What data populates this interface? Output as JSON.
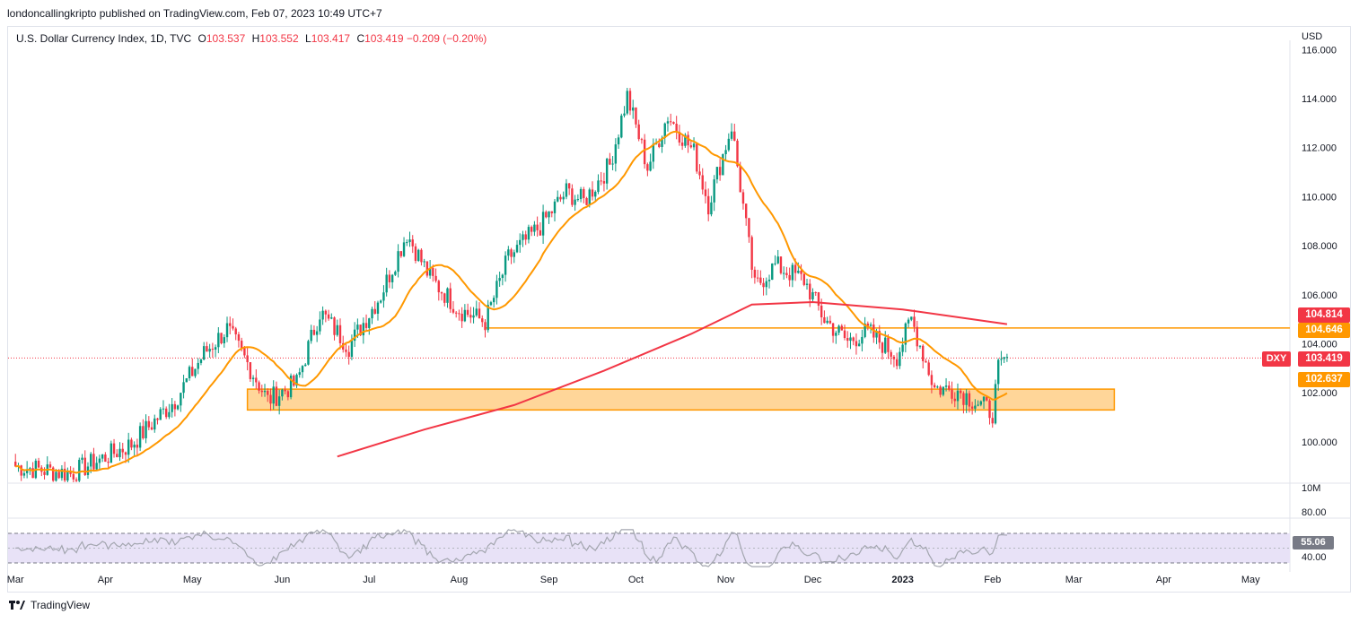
{
  "header": {
    "published_line": "londoncallingkripto published on TradingView.com, Feb 07, 2023 10:49 UTC+7"
  },
  "legend": {
    "symbol": "U.S. Dollar Currency Index, 1D, TVC",
    "o_label": "O",
    "o_value": "103.537",
    "h_label": "H",
    "h_value": "103.552",
    "l_label": "L",
    "l_value": "103.417",
    "c_label": "C",
    "c_value": "103.419",
    "change": "−0.209 (−0.20%)"
  },
  "axis": {
    "currency": "USD",
    "volume_label": "10M"
  },
  "tags": {
    "ma200": "104.814",
    "resistance": "104.646",
    "last": "103.419",
    "symbol": "DXY",
    "ma_short": "102.637",
    "rsi": "55.06"
  },
  "footer": {
    "brand": "TradingView"
  },
  "colors": {
    "up": "#089981",
    "down": "#f23645",
    "ma_short": "#ff9800",
    "ma200": "#f23645",
    "zone_fill": "#ffcc80",
    "zone_border": "#ff9800",
    "rsi_line": "#a3a6af",
    "rsi_band": "#e8e2f7"
  },
  "chart_data": [
    {
      "type": "candlestick",
      "title": "U.S. Dollar Currency Index, 1D, TVC",
      "ylabel": "USD",
      "ylim": [
        99.5,
        116.0
      ],
      "y_ticks": [
        "116.000",
        "114.000",
        "112.000",
        "110.000",
        "108.000",
        "106.000",
        "104.000",
        "102.000",
        "100.000"
      ],
      "x_ticks": [
        "Mar",
        "Apr",
        "May",
        "Jun",
        "Jul",
        "Aug",
        "Sep",
        "Oct",
        "Nov",
        "Dec",
        "2023",
        "Feb",
        "Mar",
        "Apr",
        "May"
      ],
      "close_anchors": [
        {
          "date": "2022-03-01",
          "close": 99.0
        },
        {
          "date": "2022-03-20",
          "close": 98.7
        },
        {
          "date": "2022-04-10",
          "close": 99.9
        },
        {
          "date": "2022-04-25",
          "close": 101.7
        },
        {
          "date": "2022-05-05",
          "close": 103.6
        },
        {
          "date": "2022-05-13",
          "close": 104.6
        },
        {
          "date": "2022-05-20",
          "close": 103.2
        },
        {
          "date": "2022-05-27",
          "close": 101.7
        },
        {
          "date": "2022-06-06",
          "close": 102.4
        },
        {
          "date": "2022-06-14",
          "close": 105.3
        },
        {
          "date": "2022-06-24",
          "close": 103.9
        },
        {
          "date": "2022-07-05",
          "close": 106.0
        },
        {
          "date": "2022-07-14",
          "close": 108.5
        },
        {
          "date": "2022-07-22",
          "close": 106.7
        },
        {
          "date": "2022-08-01",
          "close": 105.4
        },
        {
          "date": "2022-08-10",
          "close": 104.9
        },
        {
          "date": "2022-08-18",
          "close": 107.5
        },
        {
          "date": "2022-08-29",
          "close": 108.8
        },
        {
          "date": "2022-09-07",
          "close": 110.2
        },
        {
          "date": "2022-09-13",
          "close": 109.8
        },
        {
          "date": "2022-09-22",
          "close": 111.3
        },
        {
          "date": "2022-09-28",
          "close": 114.1
        },
        {
          "date": "2022-10-05",
          "close": 111.2
        },
        {
          "date": "2022-10-12",
          "close": 113.3
        },
        {
          "date": "2022-10-21",
          "close": 111.8
        },
        {
          "date": "2022-10-26",
          "close": 109.7
        },
        {
          "date": "2022-11-03",
          "close": 112.9
        },
        {
          "date": "2022-11-11",
          "close": 106.3
        },
        {
          "date": "2022-11-18",
          "close": 107.2
        },
        {
          "date": "2022-11-28",
          "close": 106.6
        },
        {
          "date": "2022-12-05",
          "close": 105.0
        },
        {
          "date": "2022-12-13",
          "close": 104.1
        },
        {
          "date": "2022-12-20",
          "close": 104.5
        },
        {
          "date": "2022-12-30",
          "close": 103.5
        },
        {
          "date": "2023-01-04",
          "close": 105.0
        },
        {
          "date": "2023-01-12",
          "close": 102.2
        },
        {
          "date": "2023-01-20",
          "close": 102.1
        },
        {
          "date": "2023-02-01",
          "close": 101.2
        },
        {
          "date": "2023-02-03",
          "close": 102.9
        },
        {
          "date": "2023-02-06",
          "close": 103.4
        }
      ],
      "last_ohlc": {
        "open": 103.537,
        "high": 103.552,
        "low": 103.417,
        "close": 103.419
      },
      "overlays": [
        {
          "name": "short moving average",
          "last_value": 102.637
        },
        {
          "name": "200-day moving average",
          "last_value": 104.814
        }
      ],
      "annotations": [
        {
          "type": "horizontal_line",
          "value": 104.646,
          "from_date": "2022-08-10"
        },
        {
          "type": "zone",
          "low": 101.3,
          "high": 102.15,
          "from_date": "2022-05-20",
          "to_date": "2023-03-15"
        }
      ]
    },
    {
      "type": "line",
      "title": "RSI",
      "ylim": [
        20,
        80
      ],
      "y_ticks": [
        "80.00",
        "40.00"
      ],
      "band": [
        30,
        70
      ],
      "last_value": 55.06
    }
  ]
}
